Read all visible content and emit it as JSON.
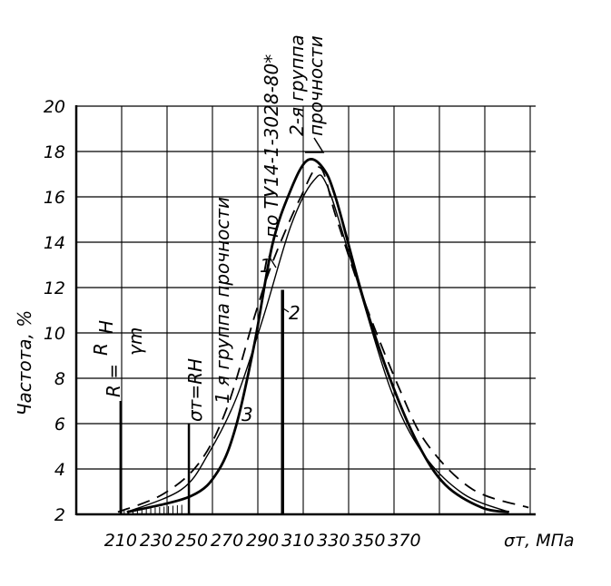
{
  "chart_data": {
    "type": "line",
    "title": "",
    "xlabel": "σт, МПа",
    "ylabel": "Частота, %",
    "xlim": [
      185,
      444
    ],
    "ylim": [
      2,
      20
    ],
    "grid": true,
    "x_ticks": [
      "210",
      "230",
      "250",
      "270",
      "290",
      "310",
      "330",
      "350",
      "370"
    ],
    "x_tick_values": [
      210,
      230,
      250,
      270,
      290,
      310,
      330,
      350,
      370
    ],
    "y_ticks": [
      "2",
      "4",
      "6",
      "8",
      "10",
      "12",
      "14",
      "16",
      "18",
      "20"
    ],
    "y_tick_values": [
      2,
      4,
      6,
      8,
      10,
      12,
      14,
      16,
      18,
      20
    ],
    "series": [
      {
        "name": "1",
        "style": "solid-thick",
        "x": [
          213.6,
          249.5,
          264.9,
          275.1,
          285.4,
          295.6,
          305.9,
          315.1,
          323.8,
          331.5,
          346.9,
          362.3,
          377.7,
          393.1,
          413.6,
          429
        ],
        "y": [
          2.1,
          2.8,
          3.9,
          5.9,
          9.5,
          13.9,
          16.3,
          17.6,
          17.3,
          15.9,
          11.5,
          7.9,
          5.1,
          3.3,
          2.3,
          2.1
        ]
      },
      {
        "name": "2",
        "style": "dashed",
        "x": [
          208.5,
          234.1,
          254.6,
          270,
          285.4,
          295.6,
          311,
          322.3,
          331.5,
          346.9,
          367.4,
          382.8,
          408.5,
          440
        ],
        "y": [
          2.1,
          2.9,
          4.3,
          6.7,
          10.7,
          13.1,
          15.9,
          17.3,
          15.1,
          11.5,
          7.5,
          5.1,
          3.1,
          2.3
        ]
      },
      {
        "name": "3",
        "style": "solid-thin",
        "x": [
          213.6,
          244.4,
          259.7,
          275.1,
          290.5,
          305.9,
          318.7,
          326.4,
          341.8,
          362.3,
          380.3,
          403.3,
          429
        ],
        "y": [
          2.1,
          3.1,
          4.7,
          7.1,
          10.7,
          14.7,
          16.7,
          16.5,
          12.7,
          7.5,
          4.7,
          2.9,
          2.1
        ]
      }
    ],
    "markers": [
      {
        "label": "R = RH/γm",
        "x": 210,
        "y_top": 7
      },
      {
        "label": "σт=RH",
        "x": 248.5,
        "y_top": 6
      },
      {
        "label": "по ТУ14-1-3028-80*",
        "x": 301.3,
        "y_top": 11.9
      }
    ],
    "annotations": {
      "r_formula_lhs": "R =",
      "r_formula_num": "R",
      "r_formula_num_sub": "H",
      "r_formula_den": "γm",
      "sigma_rh": "σт=RH",
      "group1": "1 я группа прочности",
      "tu": "по ТУ14-1-3028-80*",
      "group2_line1": "2-я группа",
      "group2_line2": "прочности",
      "curve1": "1",
      "curve2": "2",
      "curve3": "3"
    }
  }
}
